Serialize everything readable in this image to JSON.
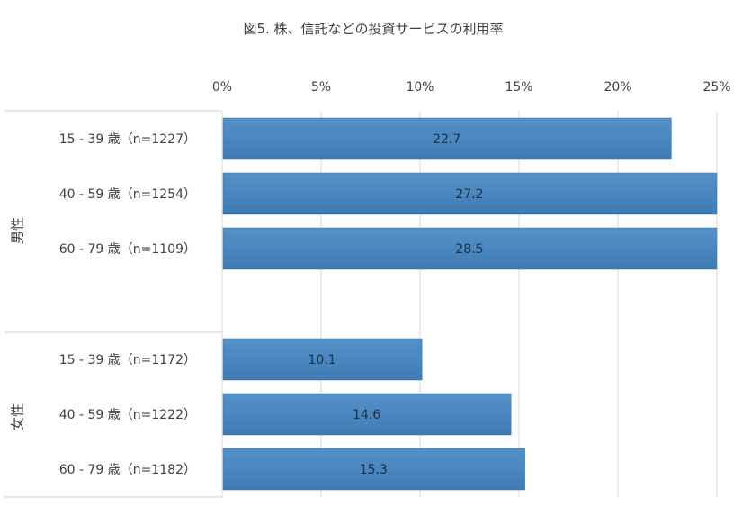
{
  "chart_data": {
    "type": "bar",
    "orientation": "horizontal",
    "title": "図5. 株、信託などの投資サービスの利用率",
    "xlim": [
      0,
      25
    ],
    "x_ticks": [
      "0%",
      "5%",
      "10%",
      "15%",
      "20%",
      "25%"
    ],
    "x_tick_values": [
      0,
      5,
      10,
      15,
      20,
      25
    ],
    "grid": true,
    "bar_color": "#4a87c0",
    "groups": [
      {
        "label": "男性",
        "categories": [
          "15 - 39 歳（n=1227）",
          "40 - 59 歳（n=1254）",
          "60 - 79 歳（n=1109）"
        ],
        "values": [
          22.7,
          27.2,
          28.5
        ],
        "data_labels": [
          "22.7",
          "27.2",
          "28.5"
        ]
      },
      {
        "label": "女性",
        "categories": [
          "15 - 39 歳（n=1172）",
          "40 - 59 歳（n=1222）",
          "60 - 79 歳（n=1182）"
        ],
        "values": [
          10.1,
          14.6,
          15.3
        ],
        "data_labels": [
          "10.1",
          "14.6",
          "15.3"
        ]
      }
    ]
  }
}
